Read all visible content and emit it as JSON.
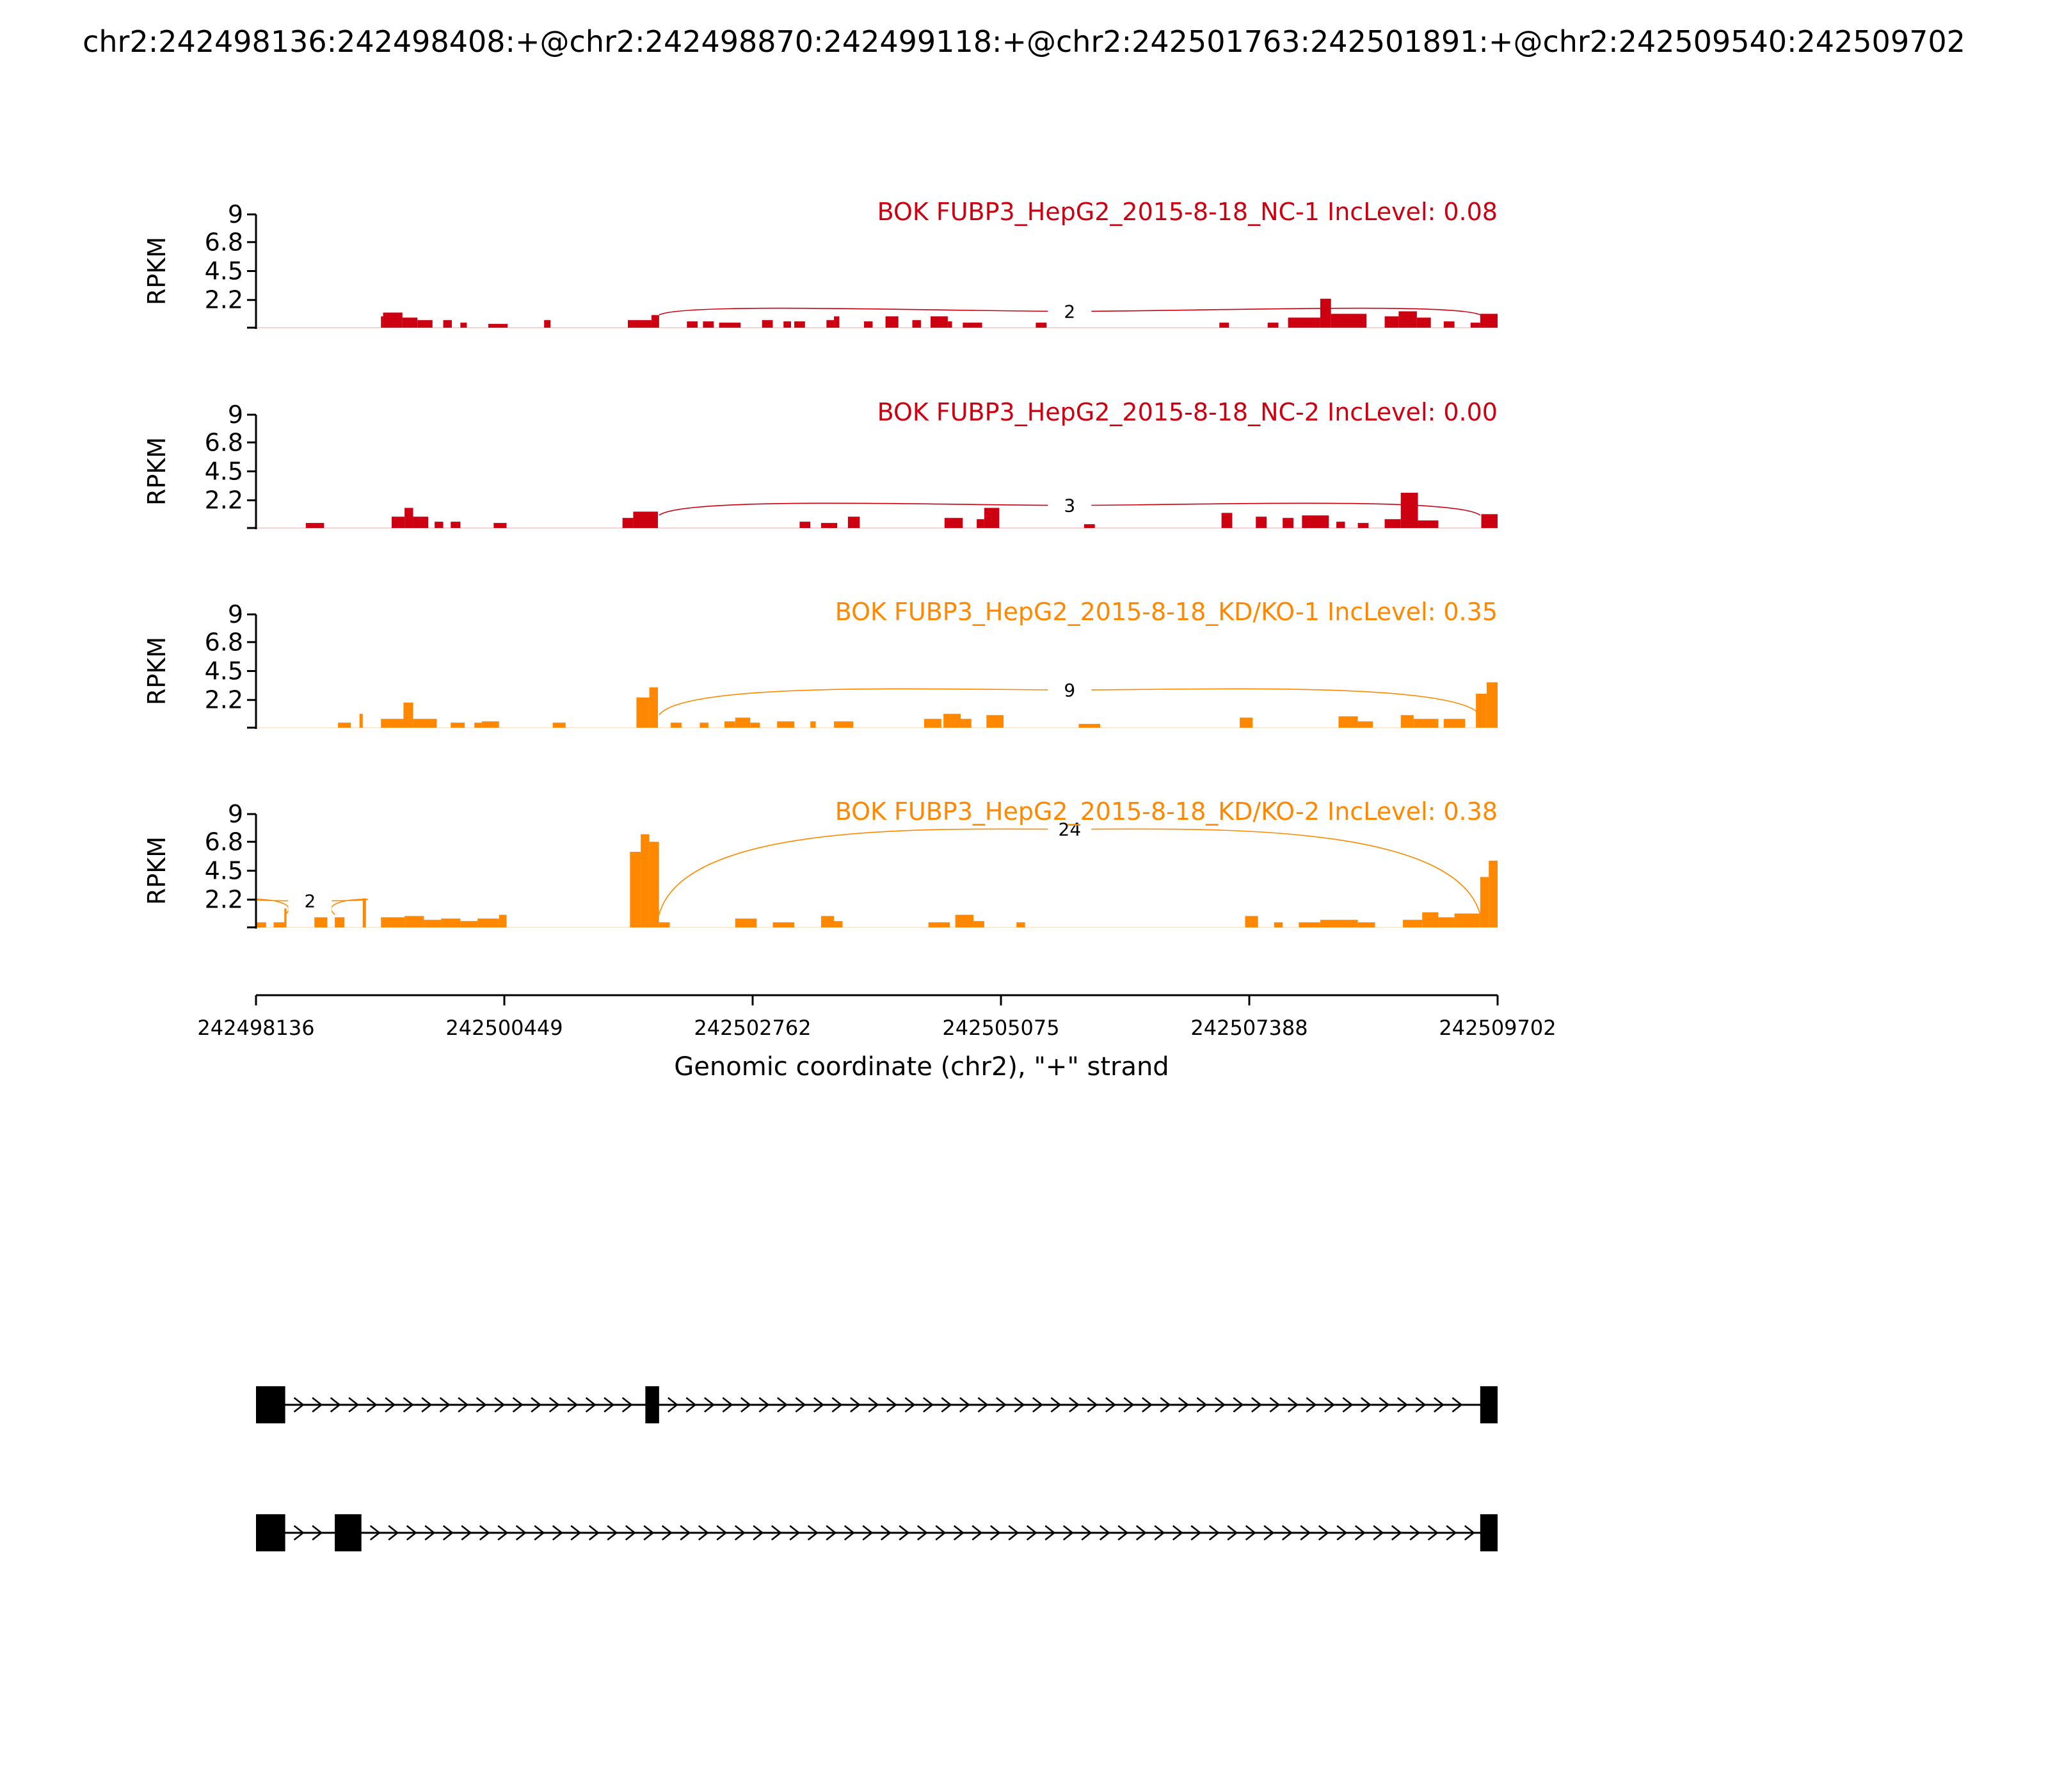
{
  "title": "chr2:242498136:242498408:+@chr2:242498870:242499118:+@chr2:242501763:242501891:+@chr2:242509540:242509702",
  "colors": {
    "nc": "#cc0011",
    "kd": "#ff8800",
    "axis": "#000000",
    "gene": "#000000"
  },
  "chart_data": {
    "type": "area",
    "ylabel": "RPKM",
    "xlabel": "Genomic coordinate (chr2), \"+\" strand",
    "xlim": [
      242498136,
      242509702
    ],
    "xticks": [
      "242498136",
      "242500449",
      "242502762",
      "242505075",
      "242507388",
      "242509702"
    ],
    "ylim": [
      0,
      9
    ],
    "yticks": [
      "9",
      "6.8",
      "4.5",
      "2.2"
    ],
    "tracks": [
      {
        "name": "BOK FUBP3_HepG2_2015-8-18_NC-1 IncLevel: 0.08",
        "group": "nc",
        "junctions": [
          {
            "from": 242501891,
            "to": 242509540,
            "label": "2",
            "height": 1.3
          }
        ],
        "coverage": [
          [
            242499300,
            242499320,
            0.9
          ],
          [
            242499320,
            242499500,
            1.2
          ],
          [
            242499500,
            242499640,
            0.8
          ],
          [
            242499640,
            242499780,
            0.6
          ],
          [
            242499880,
            242499960,
            0.6
          ],
          [
            242500040,
            242500100,
            0.4
          ],
          [
            242500300,
            242500480,
            0.3
          ],
          [
            242500820,
            242500880,
            0.6
          ],
          [
            242501600,
            242501820,
            0.6
          ],
          [
            242501820,
            242501891,
            1.0
          ],
          [
            242502150,
            242502250,
            0.5
          ],
          [
            242502300,
            242502400,
            0.5
          ],
          [
            242502450,
            242502650,
            0.4
          ],
          [
            242502850,
            242502950,
            0.6
          ],
          [
            242503050,
            242503120,
            0.5
          ],
          [
            242503150,
            242503250,
            0.5
          ],
          [
            242503450,
            242503520,
            0.6
          ],
          [
            242503520,
            242503570,
            0.9
          ],
          [
            242503800,
            242503880,
            0.5
          ],
          [
            242504000,
            242504120,
            0.9
          ],
          [
            242504250,
            242504330,
            0.6
          ],
          [
            242504420,
            242504580,
            0.9
          ],
          [
            242504580,
            242504620,
            0.5
          ],
          [
            242504720,
            242504900,
            0.4
          ],
          [
            242505400,
            242505500,
            0.4
          ],
          [
            242507110,
            242507200,
            0.4
          ],
          [
            242507560,
            242507660,
            0.4
          ],
          [
            242507750,
            242508050,
            0.8
          ],
          [
            242508050,
            242508150,
            2.3
          ],
          [
            242508150,
            242508480,
            1.1
          ],
          [
            242508650,
            242508780,
            0.9
          ],
          [
            242508780,
            242508950,
            1.3
          ],
          [
            242508950,
            242509080,
            0.8
          ],
          [
            242509200,
            242509300,
            0.5
          ],
          [
            242509450,
            242509540,
            0.4
          ],
          [
            242509540,
            242509702,
            1.1
          ]
        ]
      },
      {
        "name": "BOK FUBP3_HepG2_2015-8-18_NC-2 IncLevel: 0.00",
        "group": "nc",
        "junctions": [
          {
            "from": 242501891,
            "to": 242509540,
            "label": "3",
            "height": 1.8
          }
        ],
        "coverage": [
          [
            242498600,
            242498770,
            0.4
          ],
          [
            242499400,
            242499520,
            0.9
          ],
          [
            242499520,
            242499600,
            1.6
          ],
          [
            242499600,
            242499740,
            0.9
          ],
          [
            242499800,
            242499880,
            0.5
          ],
          [
            242499950,
            242500040,
            0.5
          ],
          [
            242500350,
            242500470,
            0.4
          ],
          [
            242501550,
            242501650,
            0.8
          ],
          [
            242501650,
            242501880,
            1.3
          ],
          [
            242503200,
            242503300,
            0.5
          ],
          [
            242503400,
            242503550,
            0.4
          ],
          [
            242503650,
            242503760,
            0.9
          ],
          [
            242504550,
            242504720,
            0.8
          ],
          [
            242504850,
            242504920,
            0.7
          ],
          [
            242504920,
            242505060,
            1.6
          ],
          [
            242505850,
            242505950,
            0.3
          ],
          [
            242507130,
            242507230,
            1.2
          ],
          [
            242507450,
            242507550,
            0.9
          ],
          [
            242507700,
            242507800,
            0.8
          ],
          [
            242507880,
            242508130,
            1.0
          ],
          [
            242508200,
            242508280,
            0.5
          ],
          [
            242508400,
            242508500,
            0.4
          ],
          [
            242508650,
            242508800,
            0.7
          ],
          [
            242508800,
            242508960,
            2.8
          ],
          [
            242508960,
            242509150,
            0.6
          ],
          [
            242509550,
            242509702,
            1.1
          ]
        ]
      },
      {
        "name": "BOK FUBP3_HepG2_2015-8-18_KD/KO-1 IncLevel: 0.35",
        "group": "kd",
        "junctions": [
          {
            "from": 242501891,
            "to": 242509540,
            "label": "9",
            "height": 3.0
          }
        ],
        "coverage": [
          [
            242498900,
            242499020,
            0.4
          ],
          [
            242499100,
            242499130,
            1.1
          ],
          [
            242499300,
            242499510,
            0.7
          ],
          [
            242499510,
            242499600,
            2.0
          ],
          [
            242499600,
            242499820,
            0.7
          ],
          [
            242499950,
            242500080,
            0.4
          ],
          [
            242500170,
            242500240,
            0.4
          ],
          [
            242500240,
            242500400,
            0.5
          ],
          [
            242500900,
            242501020,
            0.4
          ],
          [
            242501680,
            242501800,
            2.4
          ],
          [
            242501800,
            242501880,
            3.2
          ],
          [
            242502000,
            242502100,
            0.4
          ],
          [
            242502270,
            242502350,
            0.4
          ],
          [
            242502500,
            242502600,
            0.5
          ],
          [
            242502600,
            242502740,
            0.8
          ],
          [
            242502740,
            242502830,
            0.4
          ],
          [
            242502990,
            242503150,
            0.5
          ],
          [
            242503300,
            242503350,
            0.5
          ],
          [
            242503520,
            242503700,
            0.5
          ],
          [
            242504360,
            242504520,
            0.7
          ],
          [
            242504540,
            242504700,
            1.1
          ],
          [
            242504700,
            242504800,
            0.7
          ],
          [
            242504940,
            242505100,
            1.0
          ],
          [
            242505800,
            242506000,
            0.3
          ],
          [
            242507300,
            242507420,
            0.8
          ],
          [
            242508220,
            242508400,
            0.9
          ],
          [
            242508400,
            242508540,
            0.5
          ],
          [
            242508800,
            242508920,
            1.0
          ],
          [
            242508920,
            242509150,
            0.7
          ],
          [
            242509200,
            242509400,
            0.7
          ],
          [
            242509500,
            242509600,
            2.7
          ],
          [
            242509600,
            242509702,
            3.6
          ]
        ]
      },
      {
        "name": "BOK FUBP3_HepG2_2015-8-18_KD/KO-2 IncLevel: 0.38",
        "group": "kd",
        "junctions": [
          {
            "from": 242501891,
            "to": 242509540,
            "label": "24",
            "height": 7.8
          },
          {
            "from": 242498408,
            "to": 242498870,
            "label": "2",
            "height": 2.1
          }
        ],
        "coverage": [
          [
            242498136,
            242498230,
            0.4
          ],
          [
            242498300,
            242498400,
            0.4
          ],
          [
            242498400,
            242498420,
            1.5
          ],
          [
            242498680,
            242498800,
            0.8
          ],
          [
            242498870,
            242498960,
            0.8
          ],
          [
            242499130,
            242499160,
            2.3
          ],
          [
            242499300,
            242499520,
            0.8
          ],
          [
            242499520,
            242499700,
            0.9
          ],
          [
            242499700,
            242499860,
            0.6
          ],
          [
            242499860,
            242500040,
            0.7
          ],
          [
            242500040,
            242500200,
            0.5
          ],
          [
            242500200,
            242500400,
            0.7
          ],
          [
            242500400,
            242500470,
            1.0
          ],
          [
            242501620,
            242501720,
            6.0
          ],
          [
            242501720,
            242501800,
            7.4
          ],
          [
            242501800,
            242501890,
            6.8
          ],
          [
            242501890,
            242501990,
            0.4
          ],
          [
            242502600,
            242502800,
            0.7
          ],
          [
            242502950,
            242503150,
            0.4
          ],
          [
            242503400,
            242503520,
            0.9
          ],
          [
            242503520,
            242503600,
            0.5
          ],
          [
            242504400,
            242504600,
            0.4
          ],
          [
            242504650,
            242504820,
            1.0
          ],
          [
            242504820,
            242504920,
            0.5
          ],
          [
            242505220,
            242505300,
            0.4
          ],
          [
            242507350,
            242507470,
            0.9
          ],
          [
            242507620,
            242507700,
            0.4
          ],
          [
            242507850,
            242508050,
            0.4
          ],
          [
            242508050,
            242508400,
            0.6
          ],
          [
            242508400,
            242508560,
            0.4
          ],
          [
            242508820,
            242509000,
            0.6
          ],
          [
            242509000,
            242509150,
            1.2
          ],
          [
            242509150,
            242509300,
            0.8
          ],
          [
            242509300,
            242509540,
            1.1
          ],
          [
            242509540,
            242509620,
            4.0
          ],
          [
            242509620,
            242509702,
            5.3
          ]
        ]
      }
    ],
    "isoforms": [
      {
        "exons": [
          [
            242498136,
            242498408
          ],
          [
            242501763,
            242501891
          ],
          [
            242509540,
            242509702
          ]
        ]
      },
      {
        "exons": [
          [
            242498136,
            242498408
          ],
          [
            242498870,
            242499118
          ],
          [
            242509540,
            242509702
          ]
        ]
      }
    ]
  }
}
